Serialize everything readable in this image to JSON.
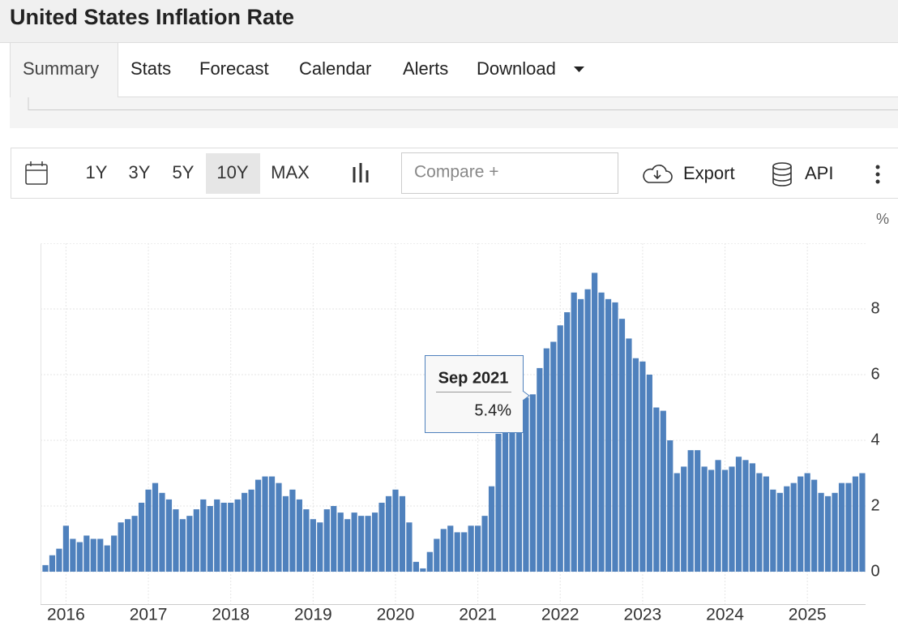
{
  "header": {
    "title": "United States Inflation Rate"
  },
  "tabs": [
    "Summary",
    "Stats",
    "Forecast",
    "Calendar",
    "Alerts",
    "Download"
  ],
  "toolbar": {
    "ranges": [
      "1Y",
      "3Y",
      "5Y",
      "10Y",
      "MAX"
    ],
    "compare": "Compare +",
    "export": "Export",
    "api": "API"
  },
  "tooltip": {
    "title": "Sep 2021",
    "value": "5.4%"
  },
  "chart_data": {
    "type": "bar",
    "y_label": "%",
    "color": "#4f81bd",
    "categories": [
      null,
      null,
      null,
      "2016",
      null,
      null,
      null,
      null,
      null,
      null,
      null,
      null,
      null,
      null,
      null,
      "2017",
      null,
      null,
      null,
      null,
      null,
      null,
      null,
      null,
      null,
      null,
      null,
      "2018",
      null,
      null,
      null,
      null,
      null,
      null,
      null,
      null,
      null,
      null,
      null,
      "2019",
      null,
      null,
      null,
      null,
      null,
      null,
      null,
      null,
      null,
      null,
      null,
      "2020",
      null,
      null,
      null,
      null,
      null,
      null,
      null,
      null,
      null,
      null,
      null,
      "2021",
      null,
      null,
      null,
      null,
      null,
      null,
      null,
      null,
      null,
      null,
      null,
      "2022",
      null,
      null,
      null,
      null,
      null,
      null,
      null,
      null,
      null,
      null,
      null,
      "2023",
      null,
      null,
      null,
      null,
      null,
      null,
      null,
      null,
      null,
      null,
      null,
      "2024",
      null,
      null,
      null,
      null,
      null,
      null,
      null,
      null,
      null,
      null,
      null,
      "2025",
      null,
      null,
      null,
      null,
      null,
      null,
      null,
      null
    ],
    "values": [
      0.2,
      0.5,
      0.7,
      1.4,
      1.0,
      0.9,
      1.1,
      1.0,
      1.0,
      0.8,
      1.1,
      1.5,
      1.6,
      1.7,
      2.1,
      2.5,
      2.7,
      2.4,
      2.2,
      1.9,
      1.6,
      1.7,
      1.9,
      2.2,
      2.0,
      2.2,
      2.1,
      2.1,
      2.2,
      2.4,
      2.5,
      2.8,
      2.9,
      2.9,
      2.7,
      2.3,
      2.5,
      2.2,
      1.9,
      1.6,
      1.5,
      1.9,
      2.0,
      1.8,
      1.6,
      1.8,
      1.7,
      1.7,
      1.8,
      2.1,
      2.3,
      2.5,
      2.3,
      1.5,
      0.3,
      0.1,
      0.6,
      1.0,
      1.3,
      1.4,
      1.2,
      1.2,
      1.4,
      1.4,
      1.7,
      2.6,
      4.2,
      5.0,
      5.4,
      5.4,
      5.3,
      5.4,
      6.2,
      6.8,
      7.0,
      7.5,
      7.9,
      8.5,
      8.3,
      8.6,
      9.1,
      8.5,
      8.3,
      8.2,
      7.7,
      7.1,
      6.5,
      6.4,
      6.0,
      5.0,
      4.9,
      4.0,
      3.0,
      3.2,
      3.7,
      3.7,
      3.2,
      3.1,
      3.4,
      3.1,
      3.2,
      3.5,
      3.4,
      3.3,
      3.0,
      2.9,
      2.5,
      2.4,
      2.6,
      2.7,
      2.9,
      3.0,
      2.8,
      2.4,
      2.3,
      2.4,
      2.7,
      2.7,
      2.9,
      3.0
    ],
    "ylim": [
      0,
      10
    ],
    "yticks": [
      0,
      2,
      4,
      6,
      8
    ],
    "grid": true
  }
}
